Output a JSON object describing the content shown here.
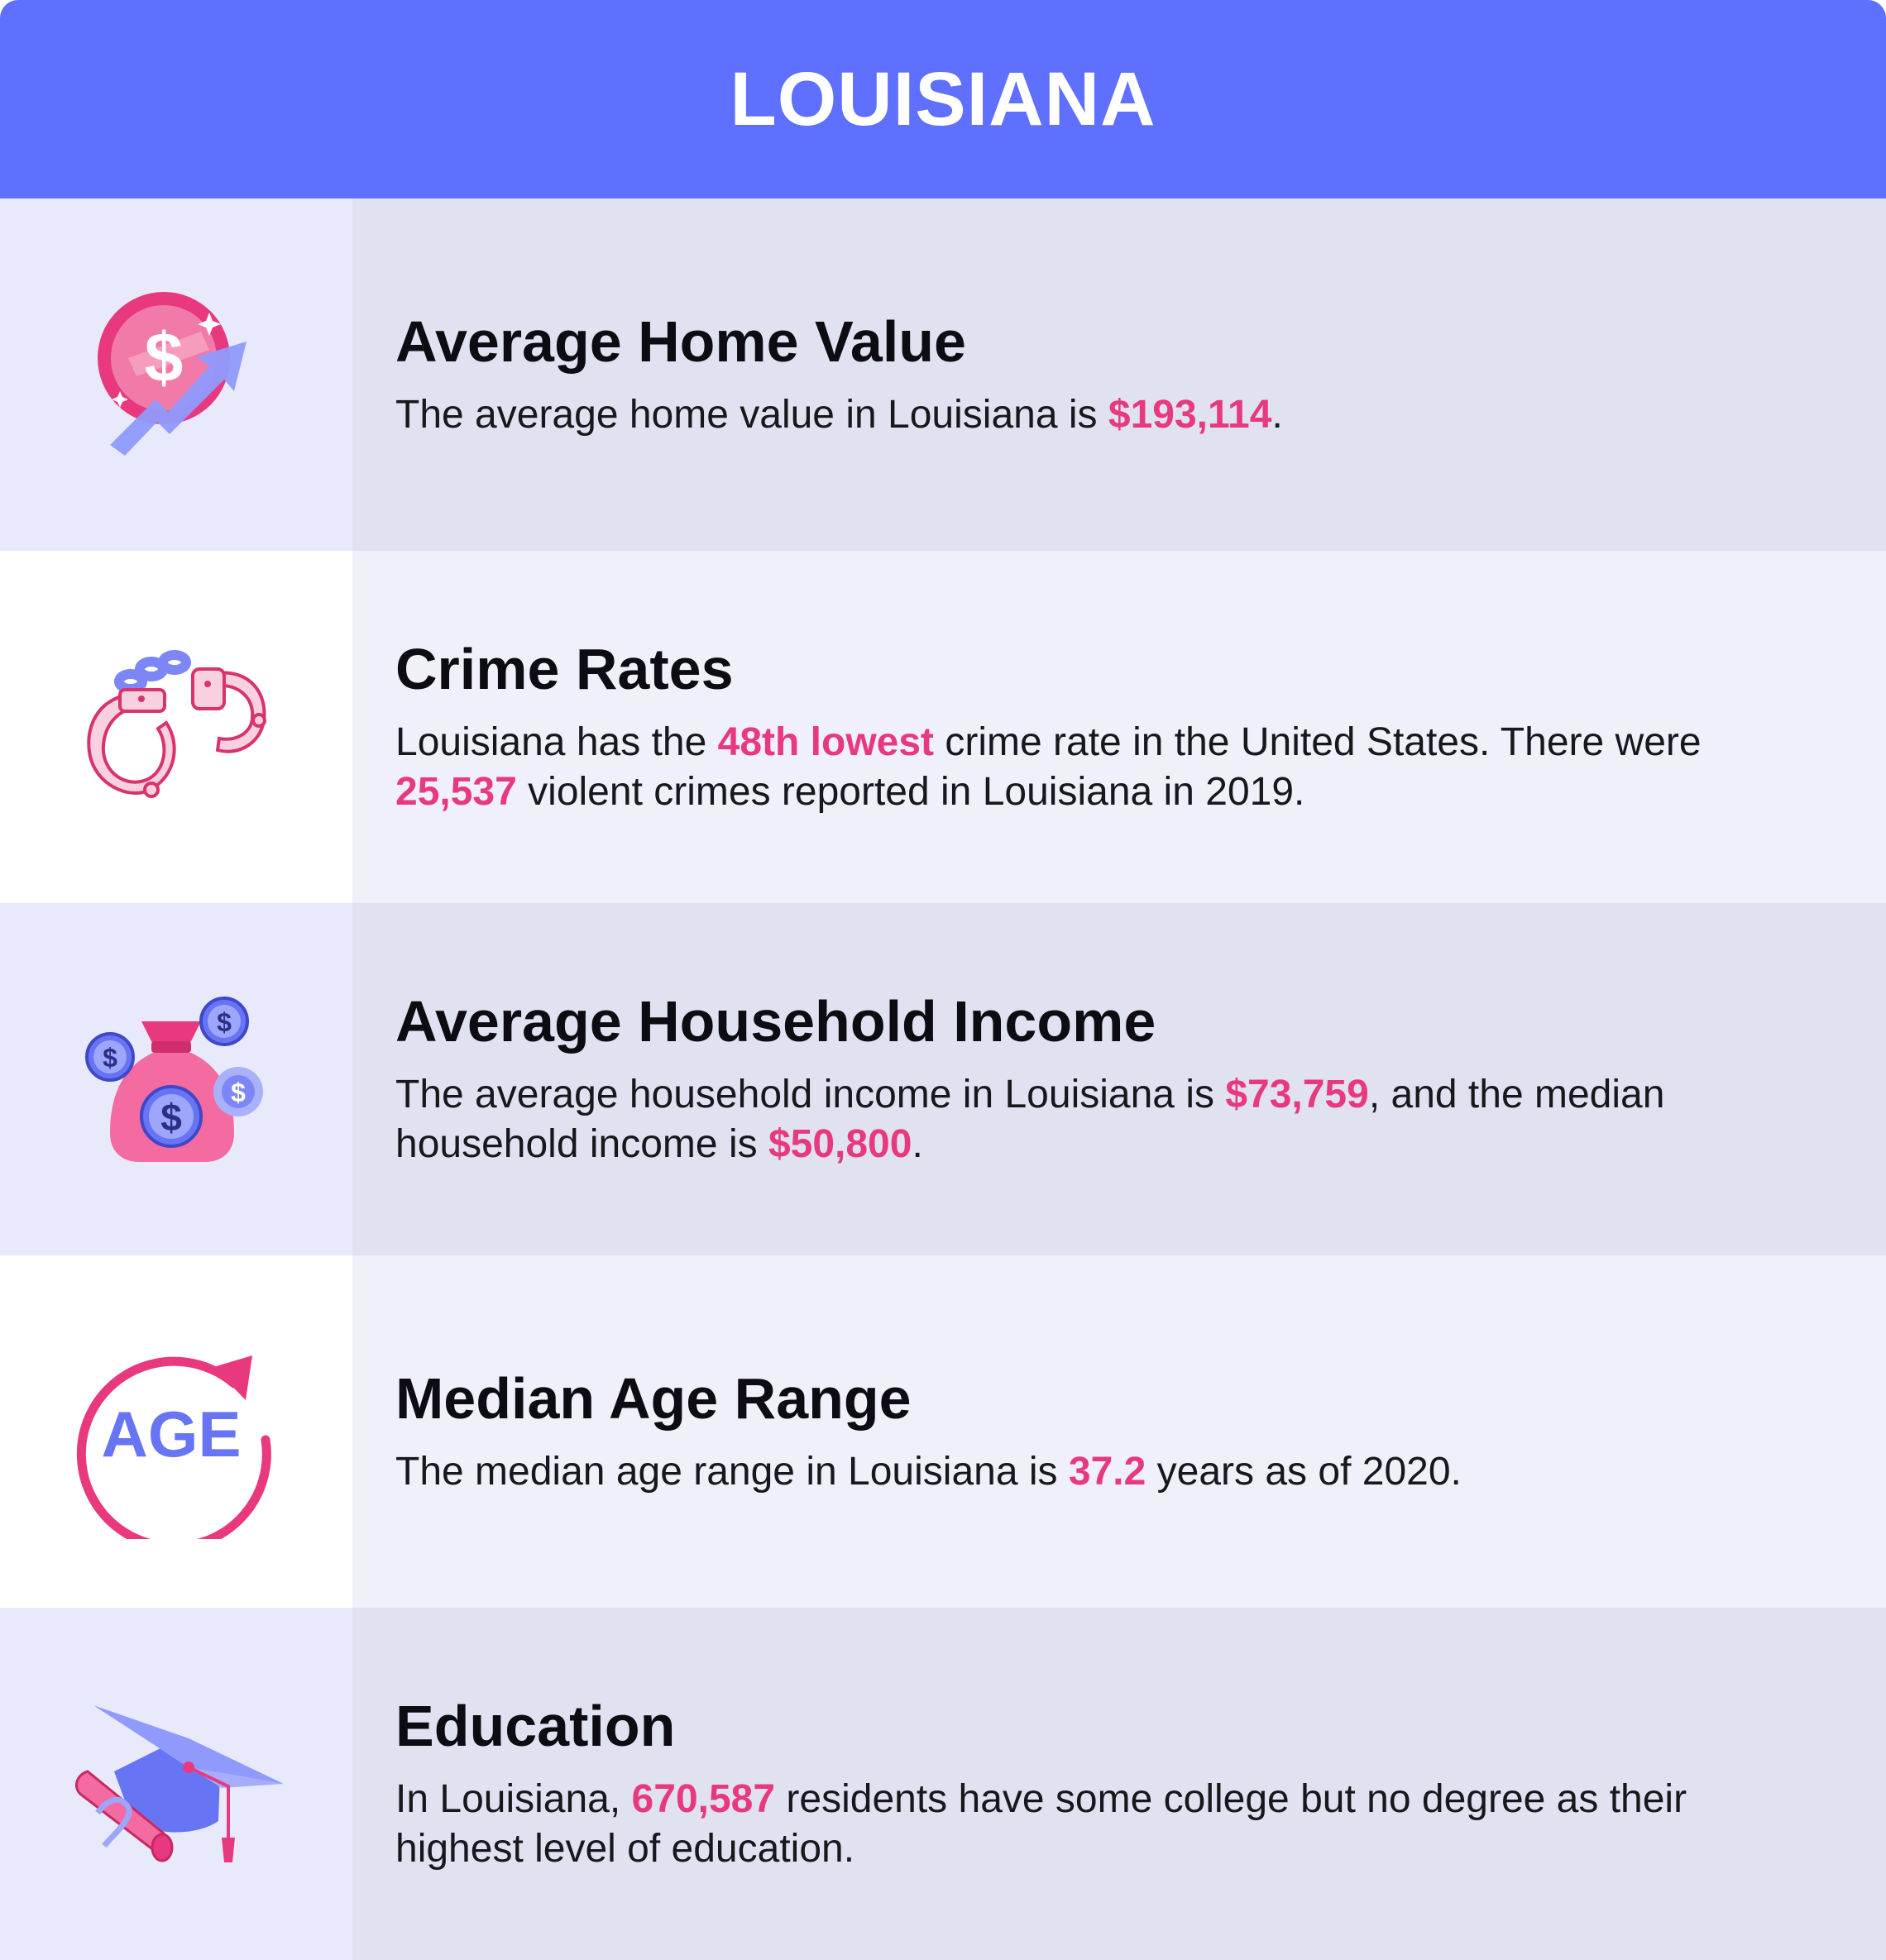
{
  "header": {
    "title": "LOUISIANA"
  },
  "rows": [
    {
      "icon": "money-growth-icon",
      "title": "Average Home Value",
      "t1": "The average home value in Louisiana is ",
      "h1": "$193,114",
      "t2": "."
    },
    {
      "icon": "handcuffs-icon",
      "title": "Crime Rates",
      "t1": "Louisiana has the ",
      "h1": "48th lowest",
      "t2": " crime rate in the United States. There were ",
      "h2": "25,537",
      "t3": " violent crimes reported in Louisiana in 2019."
    },
    {
      "icon": "money-bag-icon",
      "title": "Average Household Income",
      "t1": "The average household income in Louisiana is ",
      "h1": "$73,759",
      "t2": ", and the median household income is ",
      "h2": "$50,800",
      "t3": "."
    },
    {
      "icon": "age-cycle-icon",
      "icon_text": "AGE",
      "title": "Median Age Range",
      "t1": "The median age range in Louisiana is ",
      "h1": "37.2",
      "t2": " years as of 2020."
    },
    {
      "icon": "graduation-cap-icon",
      "title": "Education",
      "t1": "In Louisiana, ",
      "h1": "670,587",
      "t2": " residents have some college but no degree as their highest level of education."
    }
  ],
  "colors": {
    "header": "#5f6ffe",
    "highlight": "#e8397f",
    "icon_pink": "#e8397f",
    "icon_blue": "#6775f5"
  }
}
